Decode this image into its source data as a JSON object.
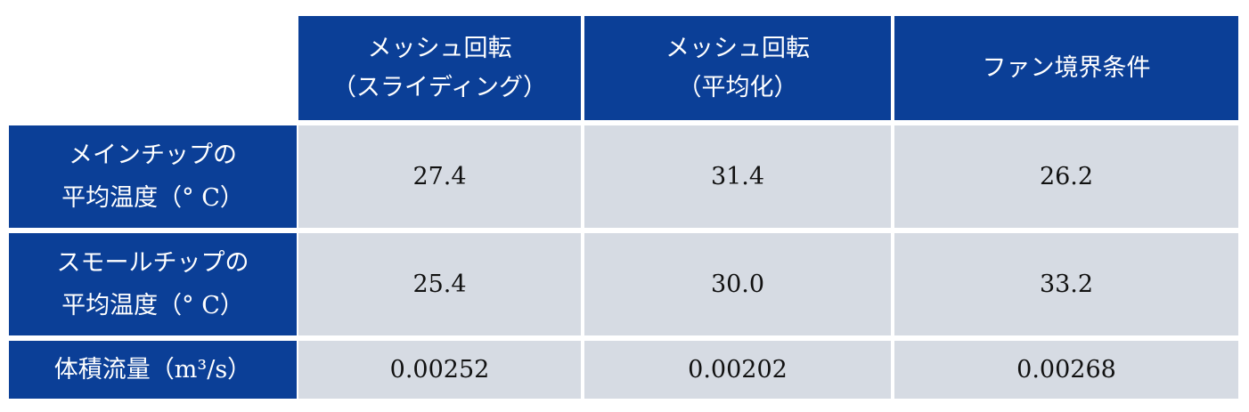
{
  "table": {
    "header": [
      [
        "メッシュ回転",
        "（スライディング）"
      ],
      [
        "メッシュ回転",
        "（平均化）"
      ],
      [
        "ファン境界条件"
      ]
    ],
    "rows": [
      {
        "label": [
          "メインチップの",
          "平均温度（° C）"
        ],
        "values": [
          "27.4",
          "31.4",
          "26.2"
        ]
      },
      {
        "label": [
          "スモールチップの",
          "平均温度（° C）"
        ],
        "values": [
          "25.4",
          "30.0",
          "33.2"
        ]
      },
      {
        "label": [
          "体積流量（m³/s）"
        ],
        "values": [
          "0.00252",
          "0.00202",
          "0.00268"
        ]
      }
    ]
  }
}
